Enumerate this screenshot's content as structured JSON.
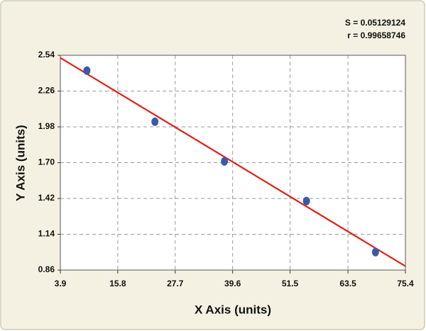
{
  "chart_data": {
    "type": "scatter",
    "x_label": "X Axis (units)",
    "y_label": "Y Axis (units)",
    "annotations": [
      "S = 0.05129124",
      "r = 0.99658746"
    ],
    "x": [
      9.4,
      23.5,
      37.9,
      54.9,
      69.2
    ],
    "values": [
      2.42,
      2.02,
      1.71,
      1.4,
      1.0
    ],
    "color": "#3a5aa8",
    "fit_line": {
      "x": [
        3.9,
        75.4
      ],
      "y": [
        2.52,
        0.89
      ],
      "color": "#e0201b"
    },
    "xlim": [
      3.9,
      75.4
    ],
    "xticks": [
      3.9,
      15.8,
      27.7,
      39.6,
      51.5,
      63.5,
      75.4
    ],
    "ylim": [
      0.86,
      2.54
    ],
    "yticks": [
      0.86,
      1.14,
      1.42,
      {
        "value": 1.7,
        "label": "1.70"
      },
      1.98,
      2.26,
      2.54
    ],
    "grid": true
  }
}
